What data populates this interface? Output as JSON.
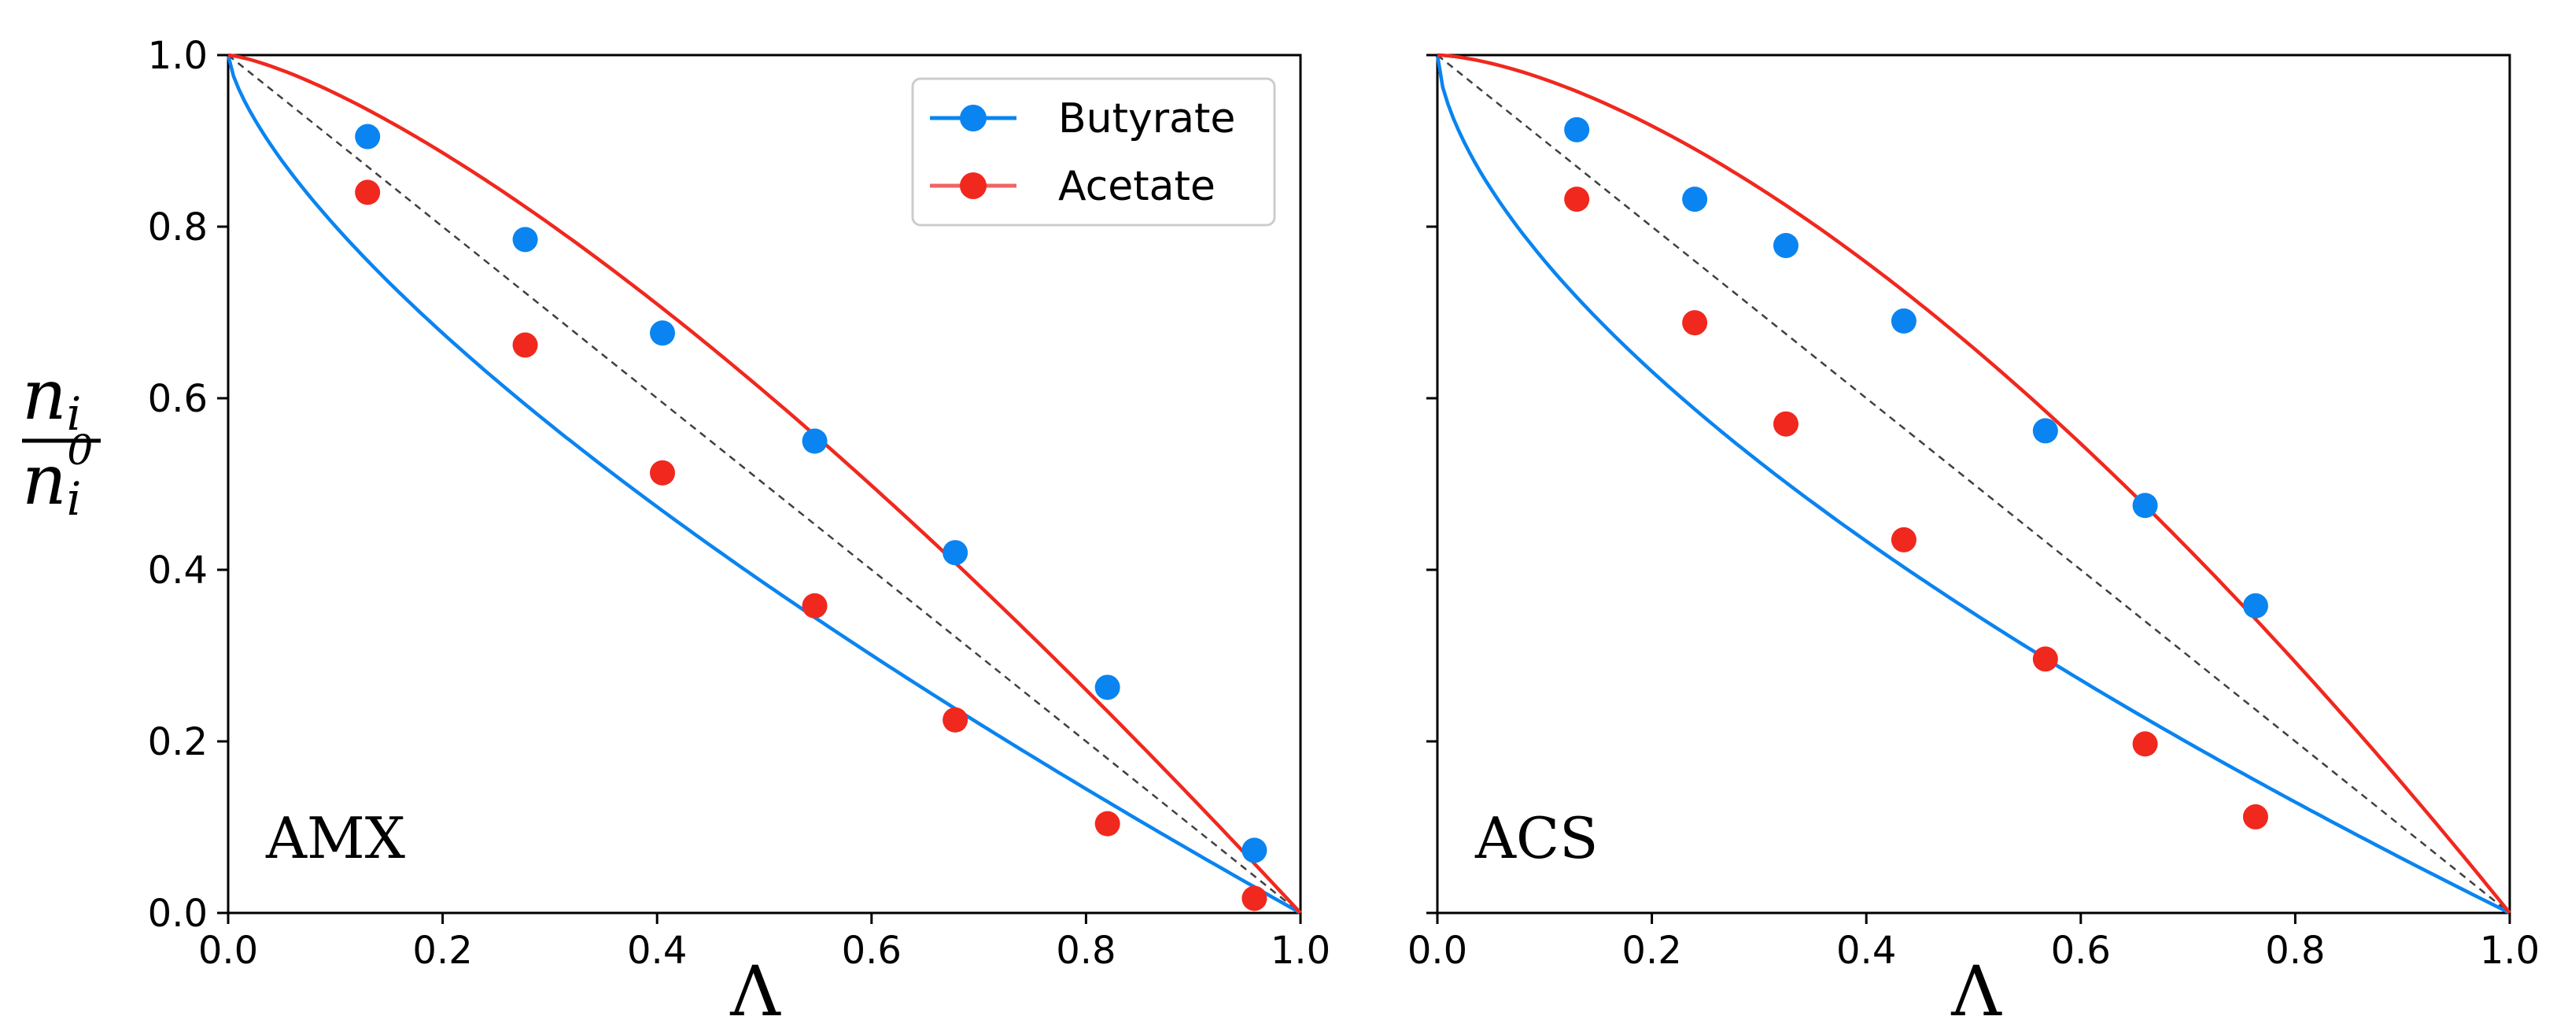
{
  "y_axis_label": {
    "numerator_base": "n",
    "numerator_sub": "i",
    "denominator_base": "n",
    "denominator_sub": "i",
    "denominator_sup": "0"
  },
  "legend": [
    {
      "label": "Butyrate",
      "color": "#0a84f0"
    },
    {
      "label": "Acetate",
      "color": "#f0281e"
    }
  ],
  "colors": {
    "butyrate": "#0a84f0",
    "acetate": "#f0281e",
    "reference": "#404040"
  },
  "chart_data": [
    {
      "type": "scatter",
      "panel_label": "AMX",
      "xlabel": "Λ",
      "ylabel": "n_i / n_i^0",
      "xlim": [
        0,
        1
      ],
      "ylim": [
        0,
        1
      ],
      "x_ticks": [
        "0.0",
        "0.2",
        "0.4",
        "0.6",
        "0.8",
        "1.0"
      ],
      "y_ticks": [
        "0.0",
        "0.2",
        "0.4",
        "0.6",
        "0.8",
        "1.0"
      ],
      "show_y_tick_labels": true,
      "show_legend": true,
      "reference_line": [
        [
          0,
          1
        ],
        [
          1,
          0
        ]
      ],
      "series": [
        {
          "name": "Butyrate",
          "color": "#0a84f0",
          "x": [
            0.13,
            0.277,
            0.405,
            0.547,
            0.678,
            0.82,
            0.957
          ],
          "y": [
            0.905,
            0.785,
            0.676,
            0.55,
            0.42,
            0.263,
            0.073
          ],
          "fit_exponent": 0.7
        },
        {
          "name": "Acetate",
          "color": "#f0281e",
          "x": [
            0.13,
            0.277,
            0.405,
            0.547,
            0.678,
            0.82,
            0.957
          ],
          "y": [
            0.84,
            0.662,
            0.513,
            0.358,
            0.225,
            0.104,
            0.017
          ],
          "fit_exponent": 1.35
        }
      ]
    },
    {
      "type": "scatter",
      "panel_label": "ACS",
      "xlabel": "Λ",
      "ylabel": "",
      "xlim": [
        0,
        1
      ],
      "ylim": [
        0,
        1
      ],
      "x_ticks": [
        "0.0",
        "0.2",
        "0.4",
        "0.6",
        "0.8",
        "1.0"
      ],
      "y_ticks": [
        "0.0",
        "0.2",
        "0.4",
        "0.6",
        "0.8",
        "1.0"
      ],
      "show_y_tick_labels": false,
      "show_legend": false,
      "reference_line": [
        [
          0,
          1
        ],
        [
          1,
          0
        ]
      ],
      "series": [
        {
          "name": "Butyrate",
          "color": "#0a84f0",
          "x": [
            0.13,
            0.24,
            0.325,
            0.435,
            0.567,
            0.66,
            0.763
          ],
          "y": [
            0.913,
            0.832,
            0.778,
            0.69,
            0.562,
            0.475,
            0.358
          ],
          "fit_exponent": 0.62
        },
        {
          "name": "Acetate",
          "color": "#f0281e",
          "x": [
            0.13,
            0.24,
            0.325,
            0.435,
            0.567,
            0.66,
            0.763
          ],
          "y": [
            0.832,
            0.688,
            0.57,
            0.435,
            0.296,
            0.197,
            0.112
          ],
          "fit_exponent": 1.55
        }
      ]
    }
  ]
}
